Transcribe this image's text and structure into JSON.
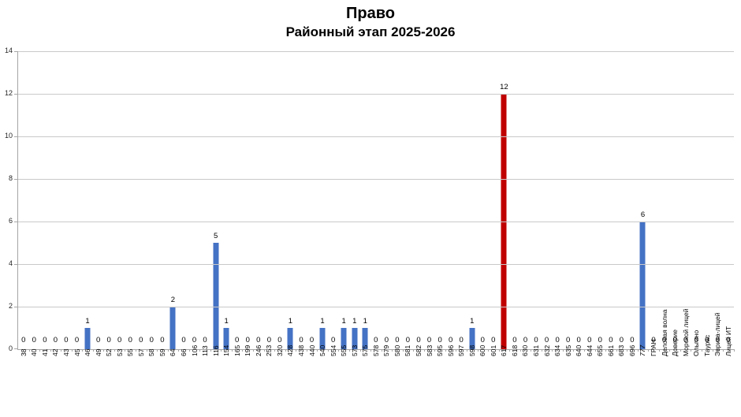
{
  "chart": {
    "title": "Право",
    "subtitle": "Районный этап 2025-2026"
  },
  "chart_data": {
    "type": "bar",
    "title": "Право",
    "subtitle": "Районный этап 2025-2026",
    "categories": [
      "38",
      "40",
      "41",
      "42",
      "43",
      "45",
      "46",
      "49",
      "52",
      "53",
      "55",
      "57",
      "58",
      "59",
      "64",
      "66",
      "106",
      "113",
      "116",
      "154",
      "165",
      "199",
      "246",
      "253",
      "320",
      "428",
      "438",
      "440",
      "540",
      "554",
      "555",
      "573",
      "575",
      "578",
      "579",
      "580",
      "581",
      "582",
      "583",
      "595",
      "596",
      "597",
      "598",
      "600",
      "601",
      "617",
      "618",
      "630",
      "631",
      "632",
      "634",
      "635",
      "640",
      "644",
      "655",
      "661",
      "683",
      "696",
      "777",
      "ГРАН",
      "Деловая волна",
      "Доверие",
      "Морской лицей",
      "Ольгино",
      "Таурас",
      "Эврика-лицей",
      "Лицей ИТ"
    ],
    "values": [
      0,
      0,
      0,
      0,
      0,
      0,
      1,
      0,
      0,
      0,
      0,
      0,
      0,
      0,
      2,
      0,
      0,
      0,
      5,
      1,
      0,
      0,
      0,
      0,
      0,
      1,
      0,
      0,
      1,
      0,
      1,
      1,
      1,
      0,
      0,
      0,
      0,
      0,
      0,
      0,
      0,
      0,
      1,
      0,
      0,
      12,
      0,
      0,
      0,
      0,
      0,
      0,
      0,
      0,
      0,
      0,
      0,
      0,
      6,
      0,
      0,
      0,
      0,
      0,
      0,
      0,
      0
    ],
    "xlabel": "",
    "ylabel": "",
    "ylim": [
      0,
      14
    ],
    "ytick_step": 2,
    "grid": "horizontal",
    "legend": "none",
    "value_labels_shown": true,
    "bar_color": "#4472c4",
    "highlight_color": "#c00000",
    "highlight_category": "617",
    "italic_category": "777"
  }
}
